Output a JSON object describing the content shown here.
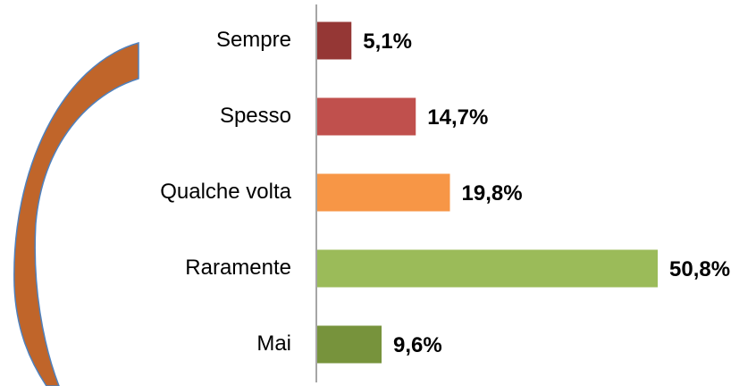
{
  "chart_data": {
    "type": "bar",
    "categories": [
      "Sempre",
      "Spesso",
      "Qualche volta",
      "Raramente",
      "Mai"
    ],
    "values": [
      5.1,
      14.7,
      19.8,
      50.8,
      9.6
    ],
    "value_labels": [
      "5,1%",
      "14,7%",
      "19,8%",
      "50,8%",
      "9,6%"
    ],
    "colors": [
      "#953735",
      "#c0504d",
      "#f79646",
      "#9bbb59",
      "#77933c"
    ]
  }
}
